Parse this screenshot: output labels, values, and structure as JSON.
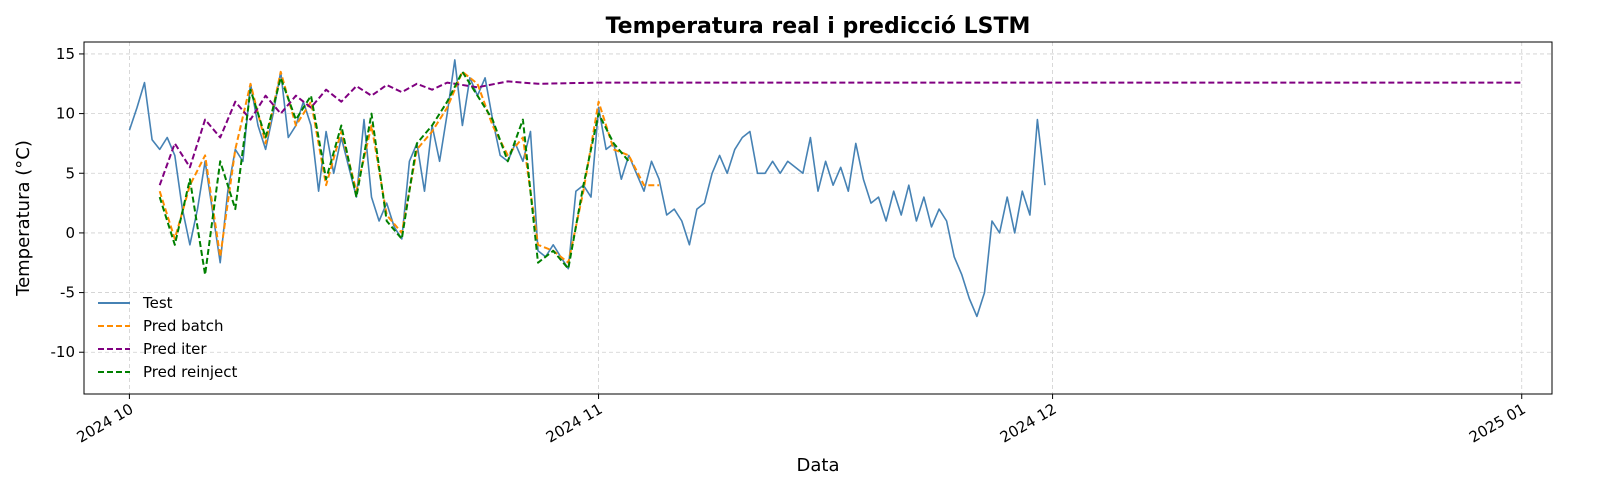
{
  "chart_data": {
    "type": "line",
    "title": "Temperatura real i predicció LSTM",
    "xlabel": "Data",
    "ylabel": "Temperatura (°C)",
    "xlim": [
      "2024-09-28",
      "2025-01-03"
    ],
    "ylim": [
      -13.5,
      16
    ],
    "grid": true,
    "legend_position": "lower-left",
    "x_ticks": [
      {
        "date": "2024-10-01",
        "label": "2024 10"
      },
      {
        "date": "2024-11-01",
        "label": "2024 11"
      },
      {
        "date": "2024-12-01",
        "label": "2024 12"
      },
      {
        "date": "2025-01-01",
        "label": "2025 01"
      }
    ],
    "y_ticks": [
      -10,
      -5,
      0,
      5,
      10,
      15
    ],
    "series": [
      {
        "name": "Test",
        "color": "#4682b4",
        "dash": "solid",
        "points": [
          [
            "2024-10-01",
            8.6
          ],
          [
            "2024-10-01T12:00",
            10.5
          ],
          [
            "2024-10-02",
            12.6
          ],
          [
            "2024-10-02T12:00",
            7.8
          ],
          [
            "2024-10-03",
            7.0
          ],
          [
            "2024-10-03T12:00",
            8.0
          ],
          [
            "2024-10-04",
            6.5
          ],
          [
            "2024-10-04T12:00",
            2.0
          ],
          [
            "2024-10-05",
            -1.0
          ],
          [
            "2024-10-05T12:00",
            2.0
          ],
          [
            "2024-10-06",
            6.0
          ],
          [
            "2024-10-07",
            -2.5
          ],
          [
            "2024-10-07T12:00",
            3.5
          ],
          [
            "2024-10-08",
            7.0
          ],
          [
            "2024-10-08T12:00",
            6.0
          ],
          [
            "2024-10-09",
            12.5
          ],
          [
            "2024-10-09T12:00",
            9.0
          ],
          [
            "2024-10-10",
            7.0
          ],
          [
            "2024-10-10T12:00",
            10.0
          ],
          [
            "2024-10-11",
            13.5
          ],
          [
            "2024-10-11T12:00",
            8.0
          ],
          [
            "2024-10-12",
            9.0
          ],
          [
            "2024-10-12T12:00",
            11.0
          ],
          [
            "2024-10-13",
            9.0
          ],
          [
            "2024-10-13T12:00",
            3.5
          ],
          [
            "2024-10-14",
            8.5
          ],
          [
            "2024-10-14T12:00",
            5.0
          ],
          [
            "2024-10-15",
            8.0
          ],
          [
            "2024-10-16",
            3.0
          ],
          [
            "2024-10-16T12:00",
            9.5
          ],
          [
            "2024-10-17",
            3.0
          ],
          [
            "2024-10-17T12:00",
            1.0
          ],
          [
            "2024-10-18",
            2.5
          ],
          [
            "2024-10-18T12:00",
            0.5
          ],
          [
            "2024-10-19",
            -0.5
          ],
          [
            "2024-10-19T12:00",
            6.0
          ],
          [
            "2024-10-20",
            7.5
          ],
          [
            "2024-10-20T12:00",
            3.5
          ],
          [
            "2024-10-21",
            9.0
          ],
          [
            "2024-10-21T12:00",
            6.0
          ],
          [
            "2024-10-22",
            10.0
          ],
          [
            "2024-10-22T12:00",
            14.5
          ],
          [
            "2024-10-23",
            9.0
          ],
          [
            "2024-10-23T12:00",
            13.0
          ],
          [
            "2024-10-24",
            11.5
          ],
          [
            "2024-10-24T12:00",
            13.0
          ],
          [
            "2024-10-25",
            9.5
          ],
          [
            "2024-10-25T12:00",
            6.5
          ],
          [
            "2024-10-26",
            6.0
          ],
          [
            "2024-10-26T12:00",
            7.5
          ],
          [
            "2024-10-27",
            6.0
          ],
          [
            "2024-10-27T12:00",
            8.5
          ],
          [
            "2024-10-28",
            -1.5
          ],
          [
            "2024-10-28T12:00",
            -2.0
          ],
          [
            "2024-10-29",
            -1.0
          ],
          [
            "2024-10-29T12:00",
            -2.0
          ],
          [
            "2024-10-30",
            -3.0
          ],
          [
            "2024-10-30T12:00",
            3.5
          ],
          [
            "2024-10-31",
            4.0
          ],
          [
            "2024-10-31T12:00",
            3.0
          ],
          [
            "2024-11-01",
            10.5
          ],
          [
            "2024-11-01T12:00",
            7.0
          ],
          [
            "2024-11-02",
            7.5
          ],
          [
            "2024-11-02T12:00",
            4.5
          ],
          [
            "2024-11-03",
            6.5
          ],
          [
            "2024-11-03T12:00",
            5.0
          ],
          [
            "2024-11-04",
            3.5
          ],
          [
            "2024-11-04T12:00",
            6.0
          ],
          [
            "2024-11-05",
            4.5
          ],
          [
            "2024-11-05T12:00",
            1.5
          ],
          [
            "2024-11-06",
            2.0
          ],
          [
            "2024-11-06T12:00",
            1.0
          ],
          [
            "2024-11-07",
            -1.0
          ],
          [
            "2024-11-07T12:00",
            2.0
          ],
          [
            "2024-11-08",
            2.5
          ],
          [
            "2024-11-08T12:00",
            5.0
          ],
          [
            "2024-11-09",
            6.5
          ],
          [
            "2024-11-09T12:00",
            5.0
          ],
          [
            "2024-11-10",
            7.0
          ],
          [
            "2024-11-10T12:00",
            8.0
          ],
          [
            "2024-11-11",
            8.5
          ],
          [
            "2024-11-11T12:00",
            5.0
          ],
          [
            "2024-11-12",
            5.0
          ],
          [
            "2024-11-12T12:00",
            6.0
          ],
          [
            "2024-11-13",
            5.0
          ],
          [
            "2024-11-13T12:00",
            6.0
          ],
          [
            "2024-11-14",
            5.5
          ],
          [
            "2024-11-14T12:00",
            5.0
          ],
          [
            "2024-11-15",
            8.0
          ],
          [
            "2024-11-15T12:00",
            3.5
          ],
          [
            "2024-11-16",
            6.0
          ],
          [
            "2024-11-16T12:00",
            4.0
          ],
          [
            "2024-11-17",
            5.5
          ],
          [
            "2024-11-17T12:00",
            3.5
          ],
          [
            "2024-11-18",
            7.5
          ],
          [
            "2024-11-18T12:00",
            4.5
          ],
          [
            "2024-11-19",
            2.5
          ],
          [
            "2024-11-19T12:00",
            3.0
          ],
          [
            "2024-11-20",
            1.0
          ],
          [
            "2024-11-20T12:00",
            3.5
          ],
          [
            "2024-11-21",
            1.5
          ],
          [
            "2024-11-21T12:00",
            4.0
          ],
          [
            "2024-11-22",
            1.0
          ],
          [
            "2024-11-22T12:00",
            3.0
          ],
          [
            "2024-11-23",
            0.5
          ],
          [
            "2024-11-23T12:00",
            2.0
          ],
          [
            "2024-11-24",
            1.0
          ],
          [
            "2024-11-24T12:00",
            -2.0
          ],
          [
            "2024-11-25",
            -3.5
          ],
          [
            "2024-11-25T12:00",
            -5.5
          ],
          [
            "2024-11-26",
            -7.0
          ],
          [
            "2024-11-26T12:00",
            -5.0
          ],
          [
            "2024-11-27",
            1.0
          ],
          [
            "2024-11-27T12:00",
            0.0
          ],
          [
            "2024-11-28",
            3.0
          ],
          [
            "2024-11-28T12:00",
            0.0
          ],
          [
            "2024-11-29",
            3.5
          ],
          [
            "2024-11-29T12:00",
            1.5
          ],
          [
            "2024-11-30",
            9.5
          ],
          [
            "2024-11-30T12:00",
            4.0
          ]
        ]
      },
      {
        "name": "Pred batch",
        "color": "#ff8c00",
        "dash": "dashed",
        "points": [
          [
            "2024-10-03",
            3.5
          ],
          [
            "2024-10-04",
            -0.5
          ],
          [
            "2024-10-05",
            4.0
          ],
          [
            "2024-10-06",
            6.5
          ],
          [
            "2024-10-07",
            -2.0
          ],
          [
            "2024-10-08",
            7.0
          ],
          [
            "2024-10-09",
            12.5
          ],
          [
            "2024-10-10",
            7.5
          ],
          [
            "2024-10-11",
            13.5
          ],
          [
            "2024-10-12",
            9.0
          ],
          [
            "2024-10-13",
            11.0
          ],
          [
            "2024-10-14",
            4.0
          ],
          [
            "2024-10-15",
            8.5
          ],
          [
            "2024-10-16",
            3.5
          ],
          [
            "2024-10-17",
            9.0
          ],
          [
            "2024-10-18",
            1.5
          ],
          [
            "2024-10-19",
            0.0
          ],
          [
            "2024-10-20",
            7.0
          ],
          [
            "2024-10-21",
            8.5
          ],
          [
            "2024-10-22",
            10.5
          ],
          [
            "2024-10-23",
            13.5
          ],
          [
            "2024-10-24",
            12.5
          ],
          [
            "2024-10-25",
            9.0
          ],
          [
            "2024-10-26",
            6.5
          ],
          [
            "2024-10-27",
            8.0
          ],
          [
            "2024-10-28",
            -1.0
          ],
          [
            "2024-10-29",
            -1.5
          ],
          [
            "2024-10-30",
            -2.5
          ],
          [
            "2024-10-31",
            3.5
          ],
          [
            "2024-11-01",
            11.0
          ],
          [
            "2024-11-02",
            7.0
          ],
          [
            "2024-11-03",
            6.5
          ],
          [
            "2024-11-04",
            4.0
          ],
          [
            "2024-11-05",
            4.0
          ]
        ]
      },
      {
        "name": "Pred iter",
        "color": "#800080",
        "dash": "dashed",
        "points": [
          [
            "2024-10-03",
            4.0
          ],
          [
            "2024-10-04",
            7.5
          ],
          [
            "2024-10-05",
            5.5
          ],
          [
            "2024-10-06",
            9.5
          ],
          [
            "2024-10-07",
            8.0
          ],
          [
            "2024-10-08",
            11.0
          ],
          [
            "2024-10-09",
            9.5
          ],
          [
            "2024-10-10",
            11.5
          ],
          [
            "2024-10-11",
            10.0
          ],
          [
            "2024-10-12",
            11.5
          ],
          [
            "2024-10-13",
            10.5
          ],
          [
            "2024-10-14",
            12.0
          ],
          [
            "2024-10-15",
            11.0
          ],
          [
            "2024-10-16",
            12.3
          ],
          [
            "2024-10-17",
            11.5
          ],
          [
            "2024-10-18",
            12.4
          ],
          [
            "2024-10-19",
            11.8
          ],
          [
            "2024-10-20",
            12.5
          ],
          [
            "2024-10-21",
            12.0
          ],
          [
            "2024-10-22",
            12.6
          ],
          [
            "2024-10-24",
            12.2
          ],
          [
            "2024-10-26",
            12.7
          ],
          [
            "2024-10-28",
            12.5
          ],
          [
            "2024-11-01",
            12.6
          ],
          [
            "2025-01-01",
            12.6
          ]
        ]
      },
      {
        "name": "Pred reinject",
        "color": "#008000",
        "dash": "dashed",
        "points": [
          [
            "2024-10-03",
            3.0
          ],
          [
            "2024-10-04",
            -1.0
          ],
          [
            "2024-10-05",
            4.5
          ],
          [
            "2024-10-06",
            -3.5
          ],
          [
            "2024-10-07",
            6.0
          ],
          [
            "2024-10-08",
            2.0
          ],
          [
            "2024-10-09",
            12.0
          ],
          [
            "2024-10-10",
            8.0
          ],
          [
            "2024-10-11",
            13.0
          ],
          [
            "2024-10-12",
            9.5
          ],
          [
            "2024-10-13",
            11.5
          ],
          [
            "2024-10-14",
            4.5
          ],
          [
            "2024-10-15",
            9.0
          ],
          [
            "2024-10-16",
            3.0
          ],
          [
            "2024-10-17",
            10.0
          ],
          [
            "2024-10-18",
            1.0
          ],
          [
            "2024-10-19",
            -0.5
          ],
          [
            "2024-10-20",
            7.5
          ],
          [
            "2024-10-21",
            9.0
          ],
          [
            "2024-10-22",
            11.0
          ],
          [
            "2024-10-23",
            13.5
          ],
          [
            "2024-10-24",
            11.5
          ],
          [
            "2024-10-25",
            9.5
          ],
          [
            "2024-10-26",
            6.0
          ],
          [
            "2024-10-27",
            9.5
          ],
          [
            "2024-10-28",
            -2.5
          ],
          [
            "2024-10-29",
            -1.5
          ],
          [
            "2024-10-30",
            -3.0
          ],
          [
            "2024-10-31",
            4.0
          ],
          [
            "2024-11-01",
            10.0
          ],
          [
            "2024-11-02",
            7.5
          ],
          [
            "2024-11-03",
            6.0
          ]
        ]
      }
    ]
  },
  "legend": {
    "items": [
      {
        "label": "Test",
        "color": "#4682b4",
        "dash": "solid"
      },
      {
        "label": "Pred batch",
        "color": "#ff8c00",
        "dash": "dashed"
      },
      {
        "label": "Pred iter",
        "color": "#800080",
        "dash": "dashed"
      },
      {
        "label": "Pred reinject",
        "color": "#008000",
        "dash": "dashed"
      }
    ]
  }
}
